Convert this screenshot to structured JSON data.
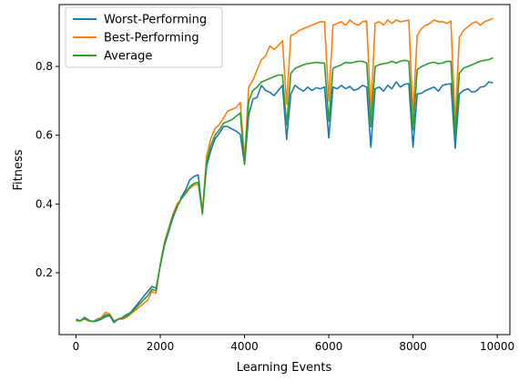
{
  "chart_data": {
    "type": "line",
    "title": "",
    "xlabel": "Learning Events",
    "ylabel": "Fitness",
    "xlim": [
      -400,
      10300
    ],
    "ylim": [
      0.02,
      0.98
    ],
    "xticks": [
      0,
      2000,
      4000,
      6000,
      8000,
      10000
    ],
    "yticks": [
      0.2,
      0.4,
      0.6,
      0.8
    ],
    "xtick_labels": [
      "0",
      "2000",
      "4000",
      "6000",
      "8000",
      "10000"
    ],
    "ytick_labels": [
      "0.2",
      "0.4",
      "0.6",
      "0.8"
    ],
    "grid": false,
    "legend_position": "top-left",
    "x": [
      0,
      100,
      200,
      300,
      400,
      500,
      600,
      700,
      800,
      900,
      1000,
      1100,
      1200,
      1300,
      1400,
      1500,
      1600,
      1700,
      1800,
      1900,
      2000,
      2100,
      2200,
      2300,
      2400,
      2500,
      2600,
      2700,
      2800,
      2900,
      3000,
      3100,
      3200,
      3300,
      3400,
      3500,
      3600,
      3700,
      3800,
      3900,
      4000,
      4100,
      4200,
      4300,
      4400,
      4500,
      4600,
      4700,
      4800,
      4900,
      5000,
      5100,
      5200,
      5300,
      5400,
      5500,
      5600,
      5700,
      5800,
      5900,
      6000,
      6100,
      6200,
      6300,
      6400,
      6500,
      6600,
      6700,
      6800,
      6900,
      7000,
      7100,
      7200,
      7300,
      7400,
      7500,
      7600,
      7700,
      7800,
      7900,
      8000,
      8100,
      8200,
      8300,
      8400,
      8500,
      8600,
      8700,
      8800,
      8900,
      9000,
      9100,
      9200,
      9300,
      9400,
      9500,
      9600,
      9700,
      9800,
      9900
    ],
    "series": [
      {
        "name": "Worst-Performing",
        "color": "#1f77b4",
        "values": [
          0.065,
          0.06,
          0.07,
          0.062,
          0.058,
          0.06,
          0.065,
          0.072,
          0.075,
          0.055,
          0.065,
          0.07,
          0.078,
          0.085,
          0.1,
          0.115,
          0.13,
          0.145,
          0.16,
          0.155,
          0.22,
          0.28,
          0.32,
          0.36,
          0.39,
          0.42,
          0.44,
          0.47,
          0.48,
          0.485,
          0.375,
          0.51,
          0.555,
          0.59,
          0.605,
          0.625,
          0.625,
          0.618,
          0.612,
          0.602,
          0.515,
          0.66,
          0.705,
          0.71,
          0.745,
          0.73,
          0.725,
          0.715,
          0.73,
          0.745,
          0.588,
          0.72,
          0.745,
          0.735,
          0.728,
          0.74,
          0.73,
          0.738,
          0.735,
          0.74,
          0.592,
          0.74,
          0.735,
          0.745,
          0.735,
          0.742,
          0.73,
          0.735,
          0.745,
          0.74,
          0.565,
          0.735,
          0.74,
          0.728,
          0.745,
          0.735,
          0.755,
          0.74,
          0.748,
          0.75,
          0.565,
          0.72,
          0.722,
          0.73,
          0.735,
          0.74,
          0.728,
          0.745,
          0.748,
          0.75,
          0.562,
          0.72,
          0.73,
          0.735,
          0.725,
          0.728,
          0.74,
          0.742,
          0.755,
          0.752
        ]
      },
      {
        "name": "Best-Performing",
        "color": "#ff7f0e",
        "values": [
          0.06,
          0.06,
          0.065,
          0.06,
          0.058,
          0.065,
          0.07,
          0.085,
          0.08,
          0.06,
          0.065,
          0.065,
          0.07,
          0.08,
          0.09,
          0.1,
          0.11,
          0.12,
          0.145,
          0.14,
          0.225,
          0.29,
          0.33,
          0.37,
          0.4,
          0.415,
          0.43,
          0.445,
          0.455,
          0.458,
          0.378,
          0.54,
          0.59,
          0.62,
          0.63,
          0.65,
          0.67,
          0.675,
          0.68,
          0.695,
          0.53,
          0.74,
          0.76,
          0.79,
          0.82,
          0.83,
          0.86,
          0.85,
          0.86,
          0.875,
          0.69,
          0.89,
          0.895,
          0.905,
          0.91,
          0.915,
          0.92,
          0.925,
          0.93,
          0.93,
          0.7,
          0.92,
          0.925,
          0.93,
          0.92,
          0.935,
          0.925,
          0.92,
          0.93,
          0.932,
          0.665,
          0.925,
          0.93,
          0.92,
          0.935,
          0.925,
          0.935,
          0.93,
          0.932,
          0.935,
          0.655,
          0.89,
          0.91,
          0.92,
          0.925,
          0.935,
          0.93,
          0.93,
          0.925,
          0.932,
          0.635,
          0.885,
          0.905,
          0.915,
          0.925,
          0.93,
          0.92,
          0.93,
          0.935,
          0.94
        ]
      },
      {
        "name": "Average",
        "color": "#2ca02c",
        "values": [
          0.062,
          0.06,
          0.068,
          0.061,
          0.058,
          0.062,
          0.067,
          0.078,
          0.077,
          0.058,
          0.065,
          0.068,
          0.074,
          0.083,
          0.095,
          0.108,
          0.12,
          0.133,
          0.152,
          0.148,
          0.222,
          0.285,
          0.325,
          0.365,
          0.392,
          0.415,
          0.432,
          0.45,
          0.46,
          0.463,
          0.37,
          0.522,
          0.57,
          0.6,
          0.615,
          0.635,
          0.64,
          0.645,
          0.655,
          0.665,
          0.515,
          0.7,
          0.73,
          0.74,
          0.755,
          0.76,
          0.765,
          0.77,
          0.775,
          0.775,
          0.63,
          0.78,
          0.795,
          0.8,
          0.805,
          0.808,
          0.81,
          0.812,
          0.81,
          0.81,
          0.64,
          0.795,
          0.8,
          0.805,
          0.812,
          0.81,
          0.812,
          0.815,
          0.815,
          0.81,
          0.625,
          0.8,
          0.805,
          0.808,
          0.81,
          0.815,
          0.81,
          0.815,
          0.818,
          0.815,
          0.615,
          0.79,
          0.8,
          0.805,
          0.81,
          0.812,
          0.808,
          0.81,
          0.815,
          0.815,
          0.6,
          0.78,
          0.795,
          0.8,
          0.805,
          0.81,
          0.815,
          0.818,
          0.82,
          0.825
        ]
      }
    ]
  }
}
